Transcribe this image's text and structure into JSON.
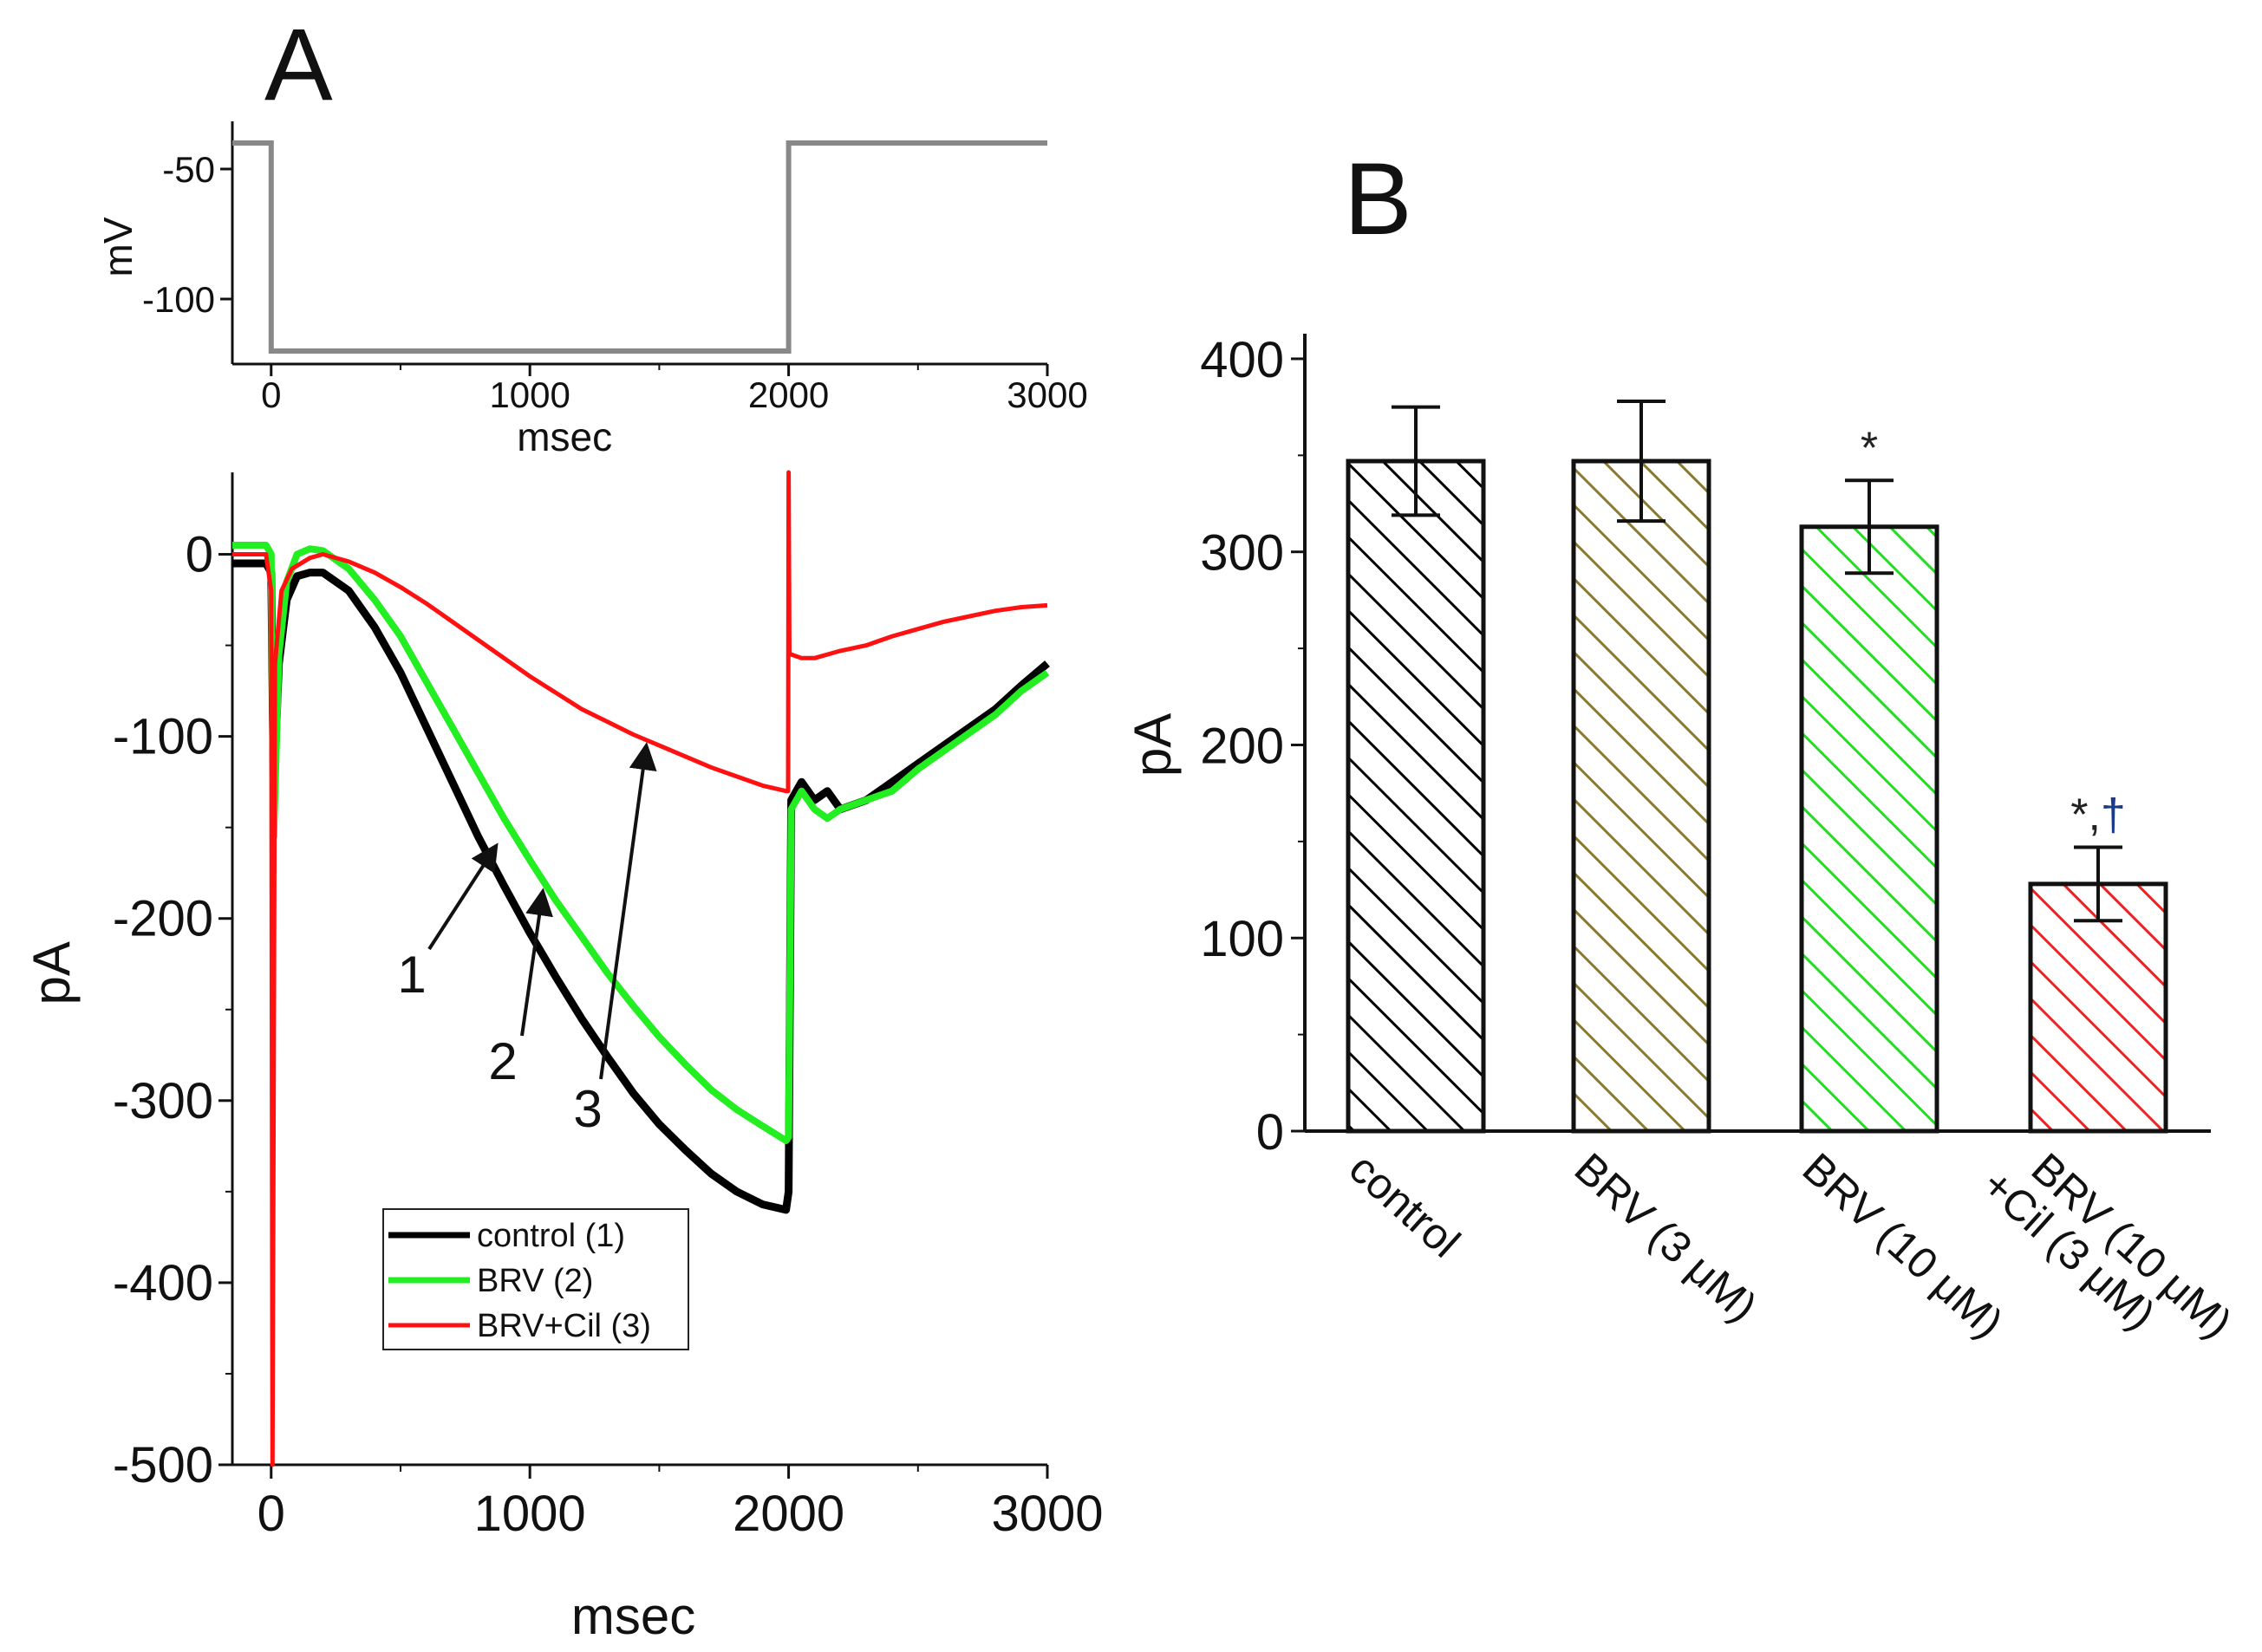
{
  "figure": {
    "panel_a_label": "A",
    "panel_b_label": "B"
  },
  "colors": {
    "control": "#000000",
    "brv": "#22ee22",
    "brv_cil": "#ff1111",
    "voltage": "#888888",
    "bar_control": "#000000",
    "bar_brv3": "#8a7a30",
    "bar_brv10": "#22dd22",
    "bar_brvcil": "#ee2222",
    "sig_star": "#222222",
    "sig_dagger": "#1a3a8a"
  },
  "chart_data": [
    {
      "id": "voltage_protocol",
      "type": "line",
      "xlabel": "msec",
      "ylabel": "mV",
      "xlim": [
        -150,
        3000
      ],
      "ylim": [
        -125,
        -35
      ],
      "xticks": [
        0,
        1000,
        2000,
        3000
      ],
      "yticks": [
        -50,
        -100
      ],
      "series": [
        {
          "x": [
            -150,
            0,
            0,
            2000,
            2000,
            3000
          ],
          "y": [
            -40,
            -40,
            -120,
            -120,
            -40,
            -40
          ]
        }
      ]
    },
    {
      "id": "current_traces",
      "type": "line",
      "xlabel": "msec",
      "ylabel": "pA",
      "xlim": [
        -150,
        3000
      ],
      "ylim": [
        -500,
        45
      ],
      "xticks": [
        0,
        1000,
        2000,
        3000
      ],
      "yticks": [
        0,
        -100,
        -200,
        -300,
        -400,
        -500
      ],
      "legend_position": "lower-center",
      "series": [
        {
          "name": "control (1)",
          "color_key": "control",
          "x": [
            -150,
            -20,
            0,
            10,
            30,
            60,
            100,
            150,
            200,
            300,
            400,
            500,
            600,
            700,
            800,
            900,
            1000,
            1100,
            1200,
            1300,
            1400,
            1500,
            1600,
            1700,
            1800,
            1900,
            1990,
            2000,
            2010,
            2050,
            2100,
            2150,
            2200,
            2300,
            2400,
            2500,
            2600,
            2700,
            2800,
            2900,
            3000
          ],
          "y": [
            -5,
            -5,
            -10,
            -130,
            -60,
            -25,
            -12,
            -10,
            -10,
            -20,
            -40,
            -65,
            -95,
            -125,
            -155,
            -182,
            -208,
            -232,
            -255,
            -276,
            -296,
            -313,
            -327,
            -340,
            -350,
            -357,
            -360,
            -350,
            -135,
            -125,
            -135,
            -130,
            -140,
            -135,
            -125,
            -115,
            -105,
            -95,
            -85,
            -72,
            -60
          ]
        },
        {
          "name": "BRV (2)",
          "color_key": "brv",
          "x": [
            -150,
            -20,
            0,
            10,
            30,
            60,
            100,
            150,
            200,
            300,
            400,
            500,
            600,
            700,
            800,
            900,
            1000,
            1100,
            1200,
            1300,
            1400,
            1500,
            1600,
            1700,
            1800,
            1900,
            1990,
            2000,
            2010,
            2050,
            2100,
            2150,
            2200,
            2300,
            2400,
            2500,
            2600,
            2700,
            2800,
            2900,
            3000
          ],
          "y": [
            5,
            5,
            0,
            -155,
            -55,
            -15,
            0,
            3,
            2,
            -8,
            -25,
            -45,
            -70,
            -95,
            -120,
            -145,
            -168,
            -190,
            -210,
            -230,
            -248,
            -265,
            -280,
            -294,
            -305,
            -314,
            -322,
            -320,
            -140,
            -130,
            -140,
            -145,
            -140,
            -135,
            -130,
            -118,
            -108,
            -98,
            -88,
            -75,
            -65
          ]
        },
        {
          "name": "BRV+Cil (3)",
          "color_key": "brv_cil",
          "x": [
            -150,
            -20,
            0,
            5,
            15,
            40,
            80,
            150,
            200,
            300,
            400,
            500,
            600,
            700,
            800,
            900,
            1000,
            1100,
            1200,
            1300,
            1400,
            1500,
            1600,
            1700,
            1800,
            1900,
            1990,
            1998,
            2000,
            2003,
            2010,
            2050,
            2100,
            2150,
            2200,
            2300,
            2400,
            2500,
            2600,
            2700,
            2800,
            2900,
            3000
          ],
          "y": [
            0,
            0,
            -20,
            -500,
            -60,
            -20,
            -8,
            -2,
            0,
            -4,
            -10,
            -18,
            -27,
            -37,
            -47,
            -57,
            -67,
            -76,
            -85,
            -92,
            -99,
            -105,
            -111,
            -117,
            -122,
            -127,
            -130,
            -130,
            45,
            -55,
            -55,
            -57,
            -57,
            -55,
            -53,
            -50,
            -45,
            -41,
            -37,
            -34,
            -31,
            -29,
            -28
          ]
        }
      ],
      "annotations": [
        {
          "text": "1",
          "target_x": 870,
          "target_y": -160
        },
        {
          "text": "2",
          "target_x": 1050,
          "target_y": -185
        },
        {
          "text": "3",
          "target_x": 1450,
          "target_y": -105
        }
      ]
    },
    {
      "id": "bar_summary",
      "type": "bar",
      "ylabel": "pA",
      "ylim": [
        0,
        400
      ],
      "yticks": [
        0,
        100,
        200,
        300,
        400
      ],
      "categories": [
        "control",
        "BRV (3 μM)",
        "BRV (10 μM)",
        "BRV (10 μM)\n+Cil (3 μM)"
      ],
      "category_lines": [
        [
          "control"
        ],
        [
          "BRV (3 μM)"
        ],
        [
          "BRV (10 μM)"
        ],
        [
          "BRV (10 μM)",
          "+Cil (3 μM)"
        ]
      ],
      "values": [
        347,
        347,
        313,
        128
      ],
      "errors": [
        28,
        31,
        24,
        19
      ],
      "bar_color_keys": [
        "bar_control",
        "bar_brv3",
        "bar_brv10",
        "bar_brvcil"
      ],
      "significance": [
        "",
        "",
        "*",
        "*,†"
      ],
      "significance_parts": [
        [],
        [],
        [
          {
            "text": "*",
            "color_key": "sig_star"
          }
        ],
        [
          {
            "text": "*",
            "color_key": "sig_star"
          },
          {
            "text": ",",
            "color_key": "sig_star"
          },
          {
            "text": "†",
            "color_key": "sig_dagger"
          }
        ]
      ]
    }
  ]
}
